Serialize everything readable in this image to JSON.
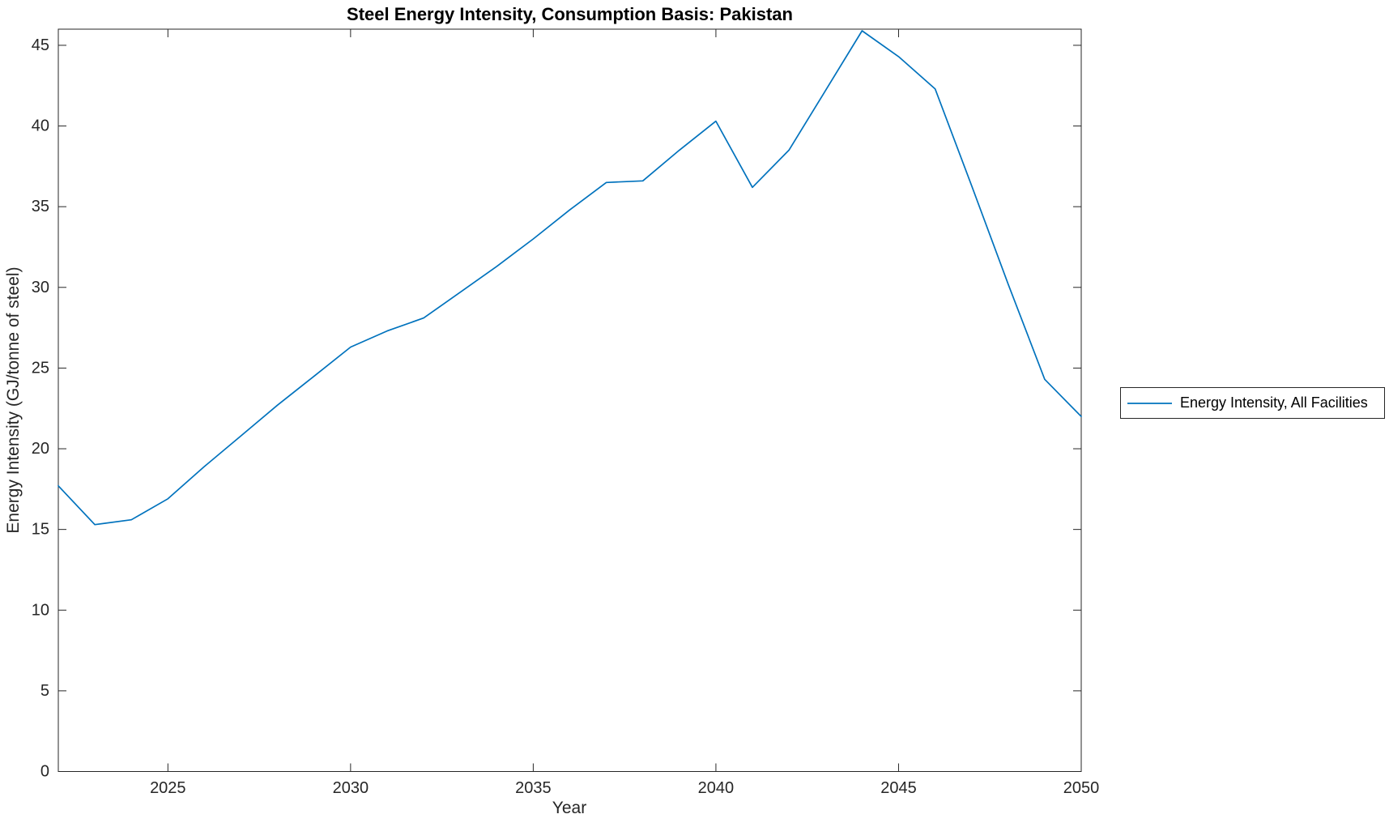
{
  "title": "Steel Energy Intensity, Consumption Basis: Pakistan",
  "x_axis": {
    "label": "Year",
    "ticks": [
      2025,
      2030,
      2035,
      2040,
      2045,
      2050
    ],
    "range": [
      2022,
      2050
    ]
  },
  "y_axis": {
    "label": "Energy Intensity (GJ/tonne of steel)",
    "ticks": [
      0,
      5,
      10,
      15,
      20,
      25,
      30,
      35,
      40,
      45
    ],
    "range": [
      0,
      46
    ]
  },
  "legend": {
    "position": "right-outside",
    "entries": [
      {
        "label": "Energy Intensity, All Facilities",
        "color": "#0072BD"
      }
    ]
  },
  "colors": {
    "line": "#0072BD",
    "axis": "#262626",
    "tick_label": "#262626",
    "background": "#ffffff"
  },
  "chart_data": {
    "type": "line",
    "title": "Steel Energy Intensity, Consumption Basis: Pakistan",
    "xlabel": "Year",
    "ylabel": "Energy Intensity (GJ/tonne of steel)",
    "xlim": [
      2022,
      2050
    ],
    "ylim": [
      0,
      46
    ],
    "grid": false,
    "legend_position": "right-outside",
    "series": [
      {
        "name": "Energy Intensity, All Facilities",
        "color": "#0072BD",
        "x": [
          2022,
          2023,
          2024,
          2025,
          2026,
          2027,
          2028,
          2029,
          2030,
          2031,
          2032,
          2033,
          2034,
          2035,
          2036,
          2037,
          2038,
          2039,
          2040,
          2041,
          2042,
          2043,
          2044,
          2045,
          2046,
          2047,
          2048,
          2049,
          2050
        ],
        "y": [
          17.7,
          15.3,
          15.6,
          16.9,
          18.9,
          20.8,
          22.7,
          24.5,
          26.3,
          27.3,
          28.1,
          29.7,
          31.3,
          33.0,
          34.8,
          36.5,
          36.6,
          38.5,
          40.3,
          36.2,
          38.5,
          42.2,
          45.9,
          44.3,
          42.3,
          36.3,
          30.2,
          24.3,
          22.0
        ]
      }
    ]
  }
}
